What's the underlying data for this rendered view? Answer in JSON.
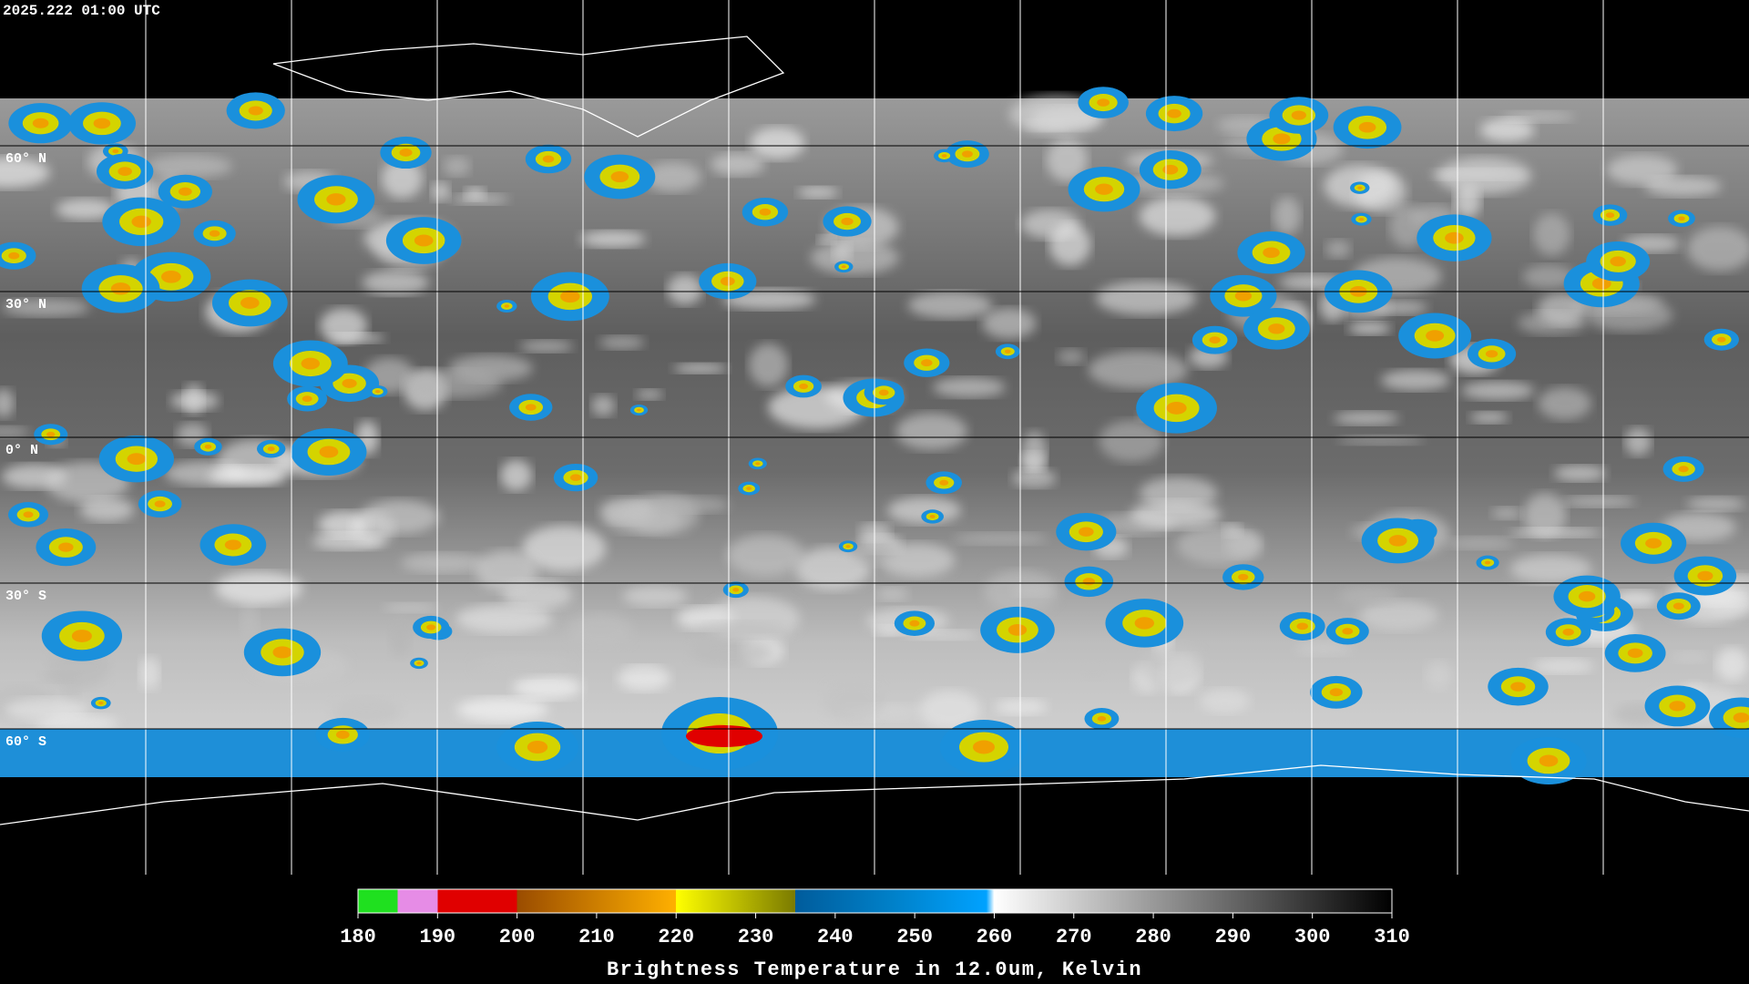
{
  "timestamp": "2025.222 01:00 UTC",
  "map": {
    "ylim": [
      90,
      -90
    ],
    "parallels": [
      {
        "value": 60,
        "label": "60° N"
      },
      {
        "value": 30,
        "label": "30° N"
      },
      {
        "value": 0,
        "label": "0° N"
      },
      {
        "value": -30,
        "label": "30° S"
      },
      {
        "value": -60,
        "label": "60° S"
      }
    ]
  },
  "colorbar": {
    "title": "Brightness Temperature in 12.0um, Kelvin",
    "range": [
      180,
      310
    ],
    "ticks": [
      180,
      190,
      200,
      210,
      220,
      230,
      240,
      250,
      260,
      270,
      280,
      290,
      300,
      310
    ],
    "stops": [
      [
        180,
        "#1fe01f"
      ],
      [
        185,
        "#1fe01f"
      ],
      [
        185,
        "#e68ce6"
      ],
      [
        190,
        "#e68ce6"
      ],
      [
        190,
        "#e00000"
      ],
      [
        200,
        "#e00000"
      ],
      [
        200,
        "#9a4c00"
      ],
      [
        220,
        "#ffb000"
      ],
      [
        220,
        "#ffff00"
      ],
      [
        235,
        "#7a7a00"
      ],
      [
        235,
        "#005c9c"
      ],
      [
        247,
        "#0080c8"
      ],
      [
        259,
        "#00a2ff"
      ],
      [
        260,
        "#ffffff"
      ],
      [
        310,
        "#000000"
      ]
    ]
  }
}
